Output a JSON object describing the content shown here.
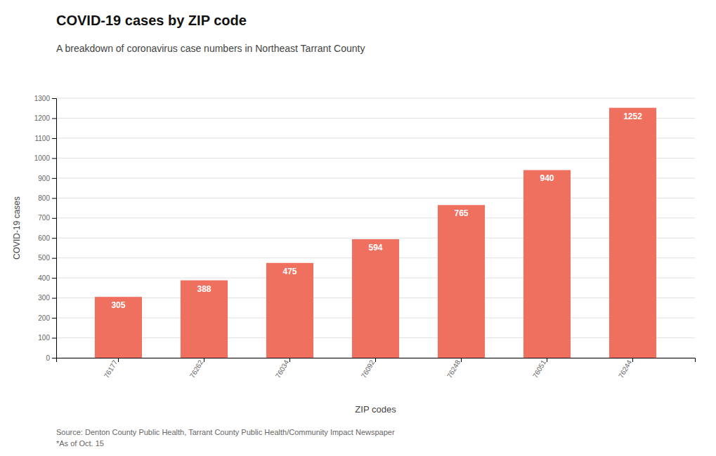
{
  "chart_data": {
    "type": "bar",
    "title": "COVID-19 cases by ZIP code",
    "subtitle": "A breakdown of coronavirus case numbers in Northeast Tarrant County",
    "xlabel": "ZIP codes",
    "ylabel": "COVID-19 cases",
    "categories": [
      "76177",
      "76262",
      "76034",
      "76092",
      "76248",
      "76051",
      "76244"
    ],
    "values": [
      305,
      388,
      475,
      594,
      765,
      940,
      1252
    ],
    "color": "#f07060",
    "ylim": [
      0,
      1300
    ],
    "yticks": [
      0,
      100,
      200,
      300,
      400,
      500,
      600,
      700,
      800,
      900,
      1000,
      1100,
      1200,
      1300
    ],
    "grid": true,
    "data_labels": true,
    "annotations": [
      "Source: Denton County Public Health, Tarrant County Public Health/Community Impact Newspaper",
      "*As of Oct. 15"
    ]
  }
}
